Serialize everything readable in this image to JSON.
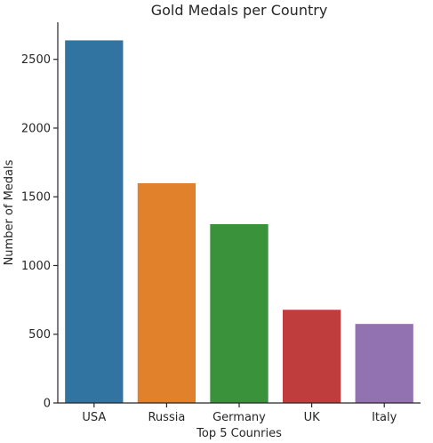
{
  "chart_data": {
    "type": "bar",
    "title": "Gold Medals per Country",
    "xlabel": "Top 5 Counries",
    "ylabel": "Number of Medals",
    "categories": [
      "USA",
      "Russia",
      "Germany",
      "UK",
      "Italy"
    ],
    "values": [
      2638,
      1599,
      1301,
      678,
      575
    ],
    "colors": [
      "#3274a1",
      "#e1812c",
      "#3a923a",
      "#c03d3e",
      "#9372b2"
    ],
    "ylim": [
      0,
      2770
    ],
    "yticks": [
      0,
      500,
      1000,
      1500,
      2000,
      2500
    ],
    "grid": false,
    "legend": "none"
  }
}
